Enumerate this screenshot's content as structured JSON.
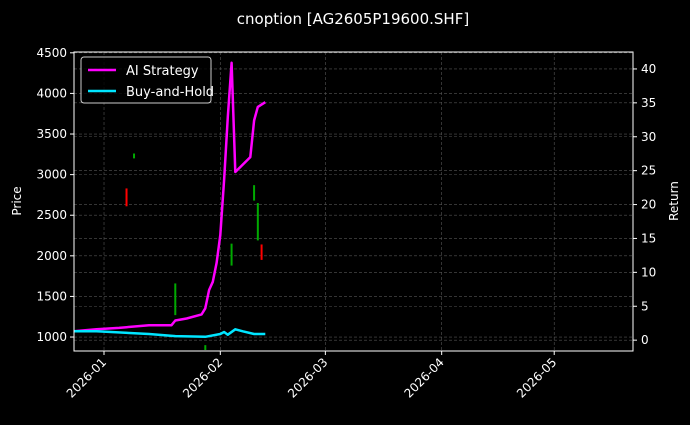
{
  "chart_data": {
    "type": "line",
    "title": "cnoption [AG2605P19600.SHF]",
    "ylabel": "Price",
    "y2label": "Return",
    "xlim": [
      "2025-12-24",
      "2026-05-22"
    ],
    "ylim": [
      828,
      4510
    ],
    "y2lim": [
      -1.6,
      42.5
    ],
    "xticks": [
      {
        "date": "2026-01-01",
        "label": "2026-01"
      },
      {
        "date": "2026-02-01",
        "label": "2026-02"
      },
      {
        "date": "2026-03-01",
        "label": "2026-03"
      },
      {
        "date": "2026-04-01",
        "label": "2026-04"
      },
      {
        "date": "2026-05-01",
        "label": "2026-05"
      }
    ],
    "yticks": [
      "1000",
      "1500",
      "2000",
      "2500",
      "3000",
      "3500",
      "4000",
      "4500"
    ],
    "y2ticks": [
      "0",
      "5",
      "10",
      "15",
      "20",
      "25",
      "30",
      "35",
      "40"
    ],
    "grid": true,
    "legend_position": "top-left",
    "candles": [
      {
        "date": "2026-01-07",
        "open": 2830,
        "close": 2610,
        "color": "#ff0000"
      },
      {
        "date": "2026-01-09",
        "open": 3200,
        "close": 3260,
        "color": "#00aa00"
      },
      {
        "date": "2026-01-20",
        "open": 1270,
        "close": 1660,
        "color": "#00aa00"
      },
      {
        "date": "2026-01-28",
        "open": 840,
        "close": 900,
        "color": "#00aa00"
      },
      {
        "date": "2026-02-04",
        "open": 1880,
        "close": 2150,
        "color": "#00aa00"
      },
      {
        "date": "2026-02-10",
        "open": 2680,
        "close": 2870,
        "color": "#00aa00"
      },
      {
        "date": "2026-02-11",
        "open": 2190,
        "close": 2650,
        "color": "#00aa00"
      },
      {
        "date": "2026-02-12",
        "open": 2140,
        "close": 1950,
        "color": "#ff0000"
      }
    ],
    "series": [
      {
        "name": "AI Strategy",
        "color": "#ff00ff",
        "axis": "right",
        "x": [
          "2025-12-24",
          "2025-12-30",
          "2026-01-05",
          "2026-01-13",
          "2026-01-19",
          "2026-01-20",
          "2026-01-23",
          "2026-01-27",
          "2026-01-28",
          "2026-01-29",
          "2026-01-30",
          "2026-01-31",
          "2026-02-01",
          "2026-02-02",
          "2026-02-03",
          "2026-02-04",
          "2026-02-05",
          "2026-02-09",
          "2026-02-10",
          "2026-02-11",
          "2026-02-13"
        ],
        "values": [
          1.3,
          1.6,
          1.8,
          2.2,
          2.2,
          2.9,
          3.2,
          3.8,
          4.7,
          7.4,
          8.6,
          11.4,
          15.5,
          23.6,
          32.9,
          40.9,
          24.8,
          27.0,
          32.4,
          34.4,
          35.1
        ]
      },
      {
        "name": "Buy-and-Hold",
        "color": "#00e5ff",
        "axis": "right",
        "x": [
          "2025-12-24",
          "2025-12-30",
          "2026-01-13",
          "2026-01-20",
          "2026-01-28",
          "2026-02-01",
          "2026-02-02",
          "2026-02-03",
          "2026-02-05",
          "2026-02-07",
          "2026-02-10",
          "2026-02-13"
        ],
        "values": [
          1.3,
          1.3,
          0.9,
          0.6,
          0.5,
          0.9,
          1.2,
          0.8,
          1.6,
          1.3,
          0.9,
          0.9
        ]
      }
    ]
  }
}
